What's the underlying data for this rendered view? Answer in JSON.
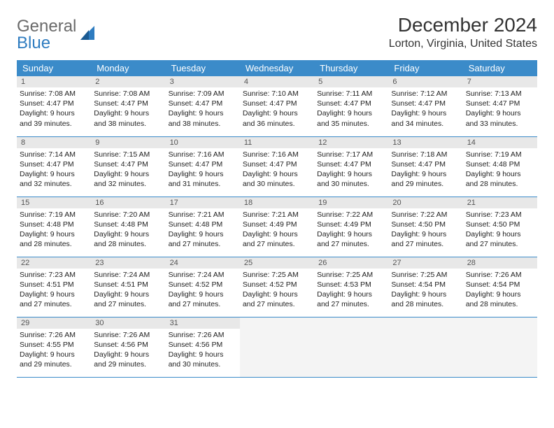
{
  "brand": {
    "part1": "General",
    "part2": "Blue"
  },
  "title": "December 2024",
  "location": "Lorton, Virginia, United States",
  "colors": {
    "header_bg": "#3b8bc9",
    "header_fg": "#ffffff",
    "daynum_bg": "#e8e8e8",
    "border": "#3b8bc9",
    "logo_gray": "#6a6a6a",
    "logo_blue": "#2e7cc0"
  },
  "weekdays": [
    "Sunday",
    "Monday",
    "Tuesday",
    "Wednesday",
    "Thursday",
    "Friday",
    "Saturday"
  ],
  "days": [
    {
      "n": "1",
      "sr": "7:08 AM",
      "ss": "4:47 PM",
      "dl": "9 hours and 39 minutes."
    },
    {
      "n": "2",
      "sr": "7:08 AM",
      "ss": "4:47 PM",
      "dl": "9 hours and 38 minutes."
    },
    {
      "n": "3",
      "sr": "7:09 AM",
      "ss": "4:47 PM",
      "dl": "9 hours and 38 minutes."
    },
    {
      "n": "4",
      "sr": "7:10 AM",
      "ss": "4:47 PM",
      "dl": "9 hours and 36 minutes."
    },
    {
      "n": "5",
      "sr": "7:11 AM",
      "ss": "4:47 PM",
      "dl": "9 hours and 35 minutes."
    },
    {
      "n": "6",
      "sr": "7:12 AM",
      "ss": "4:47 PM",
      "dl": "9 hours and 34 minutes."
    },
    {
      "n": "7",
      "sr": "7:13 AM",
      "ss": "4:47 PM",
      "dl": "9 hours and 33 minutes."
    },
    {
      "n": "8",
      "sr": "7:14 AM",
      "ss": "4:47 PM",
      "dl": "9 hours and 32 minutes."
    },
    {
      "n": "9",
      "sr": "7:15 AM",
      "ss": "4:47 PM",
      "dl": "9 hours and 32 minutes."
    },
    {
      "n": "10",
      "sr": "7:16 AM",
      "ss": "4:47 PM",
      "dl": "9 hours and 31 minutes."
    },
    {
      "n": "11",
      "sr": "7:16 AM",
      "ss": "4:47 PM",
      "dl": "9 hours and 30 minutes."
    },
    {
      "n": "12",
      "sr": "7:17 AM",
      "ss": "4:47 PM",
      "dl": "9 hours and 30 minutes."
    },
    {
      "n": "13",
      "sr": "7:18 AM",
      "ss": "4:47 PM",
      "dl": "9 hours and 29 minutes."
    },
    {
      "n": "14",
      "sr": "7:19 AM",
      "ss": "4:48 PM",
      "dl": "9 hours and 28 minutes."
    },
    {
      "n": "15",
      "sr": "7:19 AM",
      "ss": "4:48 PM",
      "dl": "9 hours and 28 minutes."
    },
    {
      "n": "16",
      "sr": "7:20 AM",
      "ss": "4:48 PM",
      "dl": "9 hours and 28 minutes."
    },
    {
      "n": "17",
      "sr": "7:21 AM",
      "ss": "4:48 PM",
      "dl": "9 hours and 27 minutes."
    },
    {
      "n": "18",
      "sr": "7:21 AM",
      "ss": "4:49 PM",
      "dl": "9 hours and 27 minutes."
    },
    {
      "n": "19",
      "sr": "7:22 AM",
      "ss": "4:49 PM",
      "dl": "9 hours and 27 minutes."
    },
    {
      "n": "20",
      "sr": "7:22 AM",
      "ss": "4:50 PM",
      "dl": "9 hours and 27 minutes."
    },
    {
      "n": "21",
      "sr": "7:23 AM",
      "ss": "4:50 PM",
      "dl": "9 hours and 27 minutes."
    },
    {
      "n": "22",
      "sr": "7:23 AM",
      "ss": "4:51 PM",
      "dl": "9 hours and 27 minutes."
    },
    {
      "n": "23",
      "sr": "7:24 AM",
      "ss": "4:51 PM",
      "dl": "9 hours and 27 minutes."
    },
    {
      "n": "24",
      "sr": "7:24 AM",
      "ss": "4:52 PM",
      "dl": "9 hours and 27 minutes."
    },
    {
      "n": "25",
      "sr": "7:25 AM",
      "ss": "4:52 PM",
      "dl": "9 hours and 27 minutes."
    },
    {
      "n": "26",
      "sr": "7:25 AM",
      "ss": "4:53 PM",
      "dl": "9 hours and 27 minutes."
    },
    {
      "n": "27",
      "sr": "7:25 AM",
      "ss": "4:54 PM",
      "dl": "9 hours and 28 minutes."
    },
    {
      "n": "28",
      "sr": "7:26 AM",
      "ss": "4:54 PM",
      "dl": "9 hours and 28 minutes."
    },
    {
      "n": "29",
      "sr": "7:26 AM",
      "ss": "4:55 PM",
      "dl": "9 hours and 29 minutes."
    },
    {
      "n": "30",
      "sr": "7:26 AM",
      "ss": "4:56 PM",
      "dl": "9 hours and 29 minutes."
    },
    {
      "n": "31",
      "sr": "7:26 AM",
      "ss": "4:56 PM",
      "dl": "9 hours and 30 minutes."
    }
  ],
  "labels": {
    "sunrise": "Sunrise:",
    "sunset": "Sunset:",
    "daylight": "Daylight:"
  }
}
